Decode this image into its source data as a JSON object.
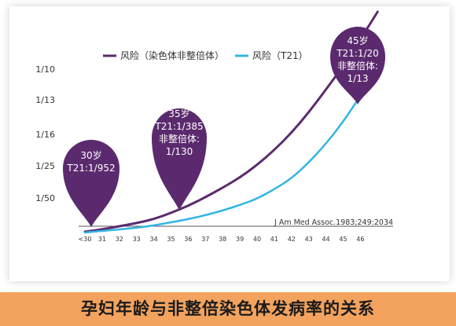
{
  "caption": "孕妇年龄与非整倍染色体发病率的关系",
  "chart_data": {
    "type": "line",
    "x_ticks": [
      "<30",
      "31",
      "32",
      "33",
      "34",
      "35",
      "36",
      "37",
      "38",
      "39",
      "40",
      "41",
      "42",
      "43",
      "44",
      "45",
      "46"
    ],
    "y_ticks": [
      "1/10",
      "1/13",
      "1/16",
      "1/25",
      "1/50"
    ],
    "series": [
      {
        "name": "风险（染色体非整倍体）",
        "color": "#5b2a6e",
        "x": [
          30,
          31,
          32,
          33,
          34,
          35,
          36,
          37,
          38,
          39,
          40,
          41,
          42,
          43,
          44,
          45,
          46,
          47
        ],
        "y": [
          295,
          292,
          288,
          284,
          279,
          271,
          262,
          251,
          239,
          226,
          210,
          191,
          169,
          143,
          114,
          84,
          50,
          15
        ]
      },
      {
        "name": "风险（T21）",
        "color": "#33b5e5",
        "x": [
          30,
          31,
          32,
          33,
          34,
          35,
          36,
          37,
          38,
          39,
          40,
          41,
          42,
          43,
          44,
          45,
          46,
          47
        ],
        "y": [
          296,
          294,
          292,
          290,
          287,
          283,
          279,
          274,
          268,
          261,
          253,
          241,
          227,
          207,
          183,
          155,
          122,
          88
        ]
      }
    ],
    "annotations": [
      {
        "age": "30岁",
        "t21": "T21:1/952"
      },
      {
        "age": "35岁",
        "t21": "T21:1/385",
        "aneu_label": "非整倍体:",
        "aneu_value": "1/130"
      },
      {
        "age": "45岁",
        "t21": "T21:1/20",
        "aneu_label": "非整倍体:",
        "aneu_value": "1/13"
      }
    ],
    "source": "J Am Med Assoc.1983;249:2034",
    "colors": {
      "pin": "#5b2a6e",
      "axis": "#555555"
    }
  }
}
